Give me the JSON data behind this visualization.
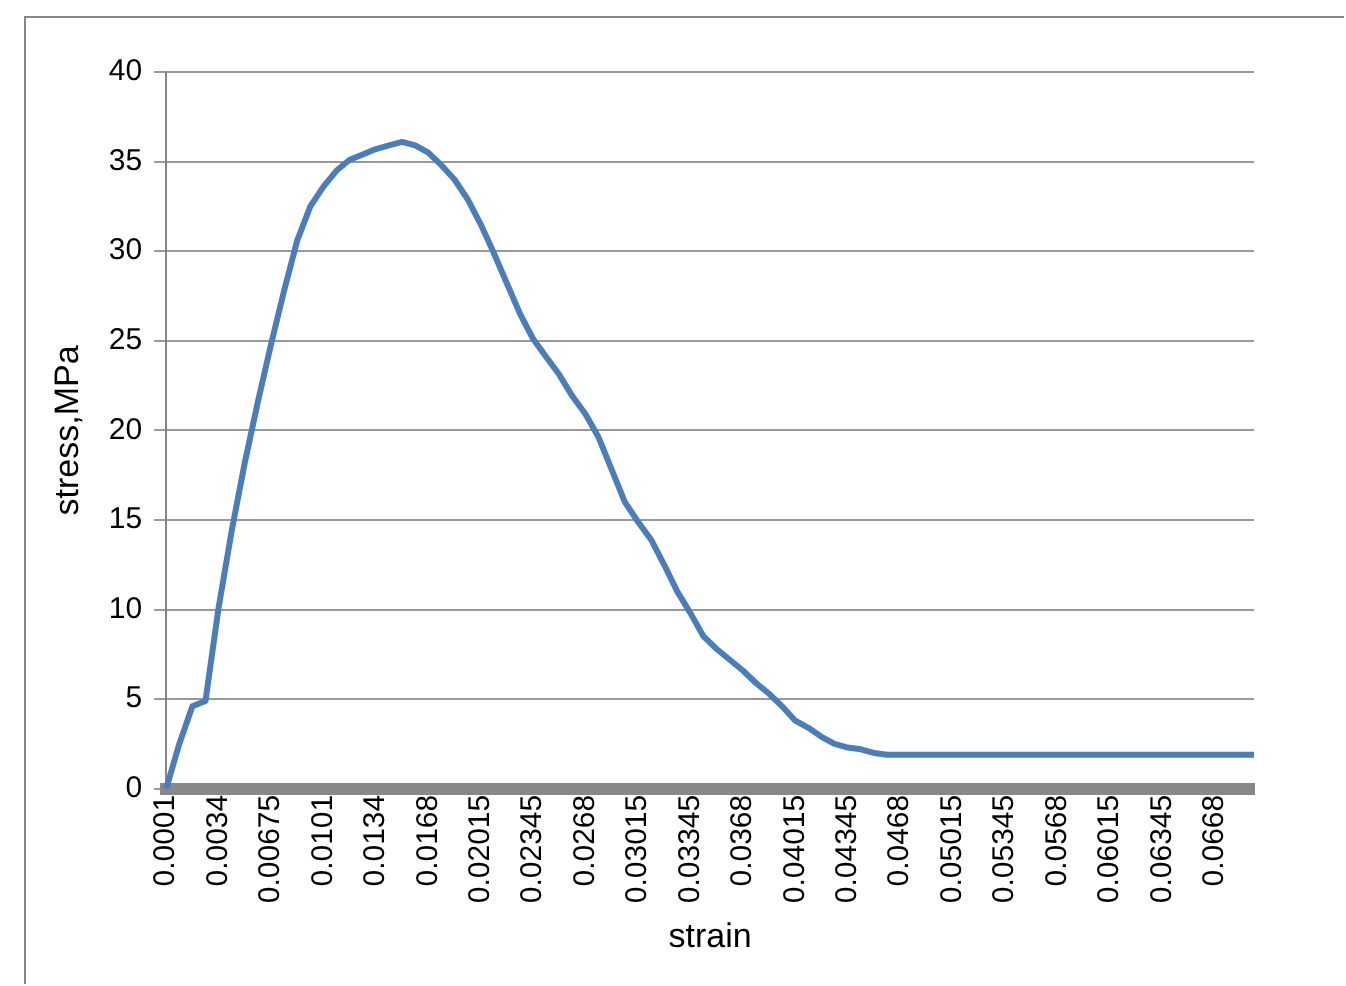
{
  "chart_data": {
    "type": "line",
    "xlabel": "strain",
    "ylabel": "stress,MPa",
    "categories": [
      "0.0001",
      null,
      null,
      null,
      "0.0034",
      null,
      null,
      null,
      "0.00675",
      null,
      null,
      null,
      "0.0101",
      null,
      null,
      null,
      "0.0134",
      null,
      null,
      null,
      "0.0168",
      null,
      null,
      null,
      "0.02015",
      null,
      null,
      null,
      "0.02345",
      null,
      null,
      null,
      "0.0268",
      null,
      null,
      null,
      "0.03015",
      null,
      null,
      null,
      "0.03345",
      null,
      null,
      null,
      "0.0368",
      null,
      null,
      null,
      "0.04015",
      null,
      null,
      null,
      "0.04345",
      null,
      null,
      null,
      "0.0468",
      null,
      null,
      null,
      "0.05015",
      null,
      null,
      null,
      "0.05345",
      null,
      null,
      null,
      "0.0568",
      null,
      null,
      null,
      "0.06015",
      null,
      null,
      null,
      "0.06345",
      null,
      null,
      null,
      "0.0668",
      null,
      null,
      null
    ],
    "series": [
      {
        "color": "#4a7ebb",
        "values": [
          0,
          2.5,
          4.6,
          4.9,
          10.1,
          14.4,
          18.2,
          21.6,
          24.8,
          27.8,
          30.6,
          32.5,
          33.6,
          34.5,
          35.1,
          35.4,
          35.7,
          35.9,
          36.1,
          35.9,
          35.5,
          34.8,
          34.0,
          32.9,
          31.5,
          29.9,
          28.2,
          26.5,
          25.1,
          24.1,
          23.1,
          21.9,
          20.9,
          19.6,
          17.8,
          16.0,
          14.9,
          13.9,
          12.5,
          11.0,
          9.8,
          8.5,
          7.8,
          7.2,
          6.6,
          5.9,
          5.3,
          4.6,
          3.8,
          3.4,
          2.9,
          2.5,
          2.3,
          2.2,
          2.0,
          1.9,
          1.9,
          1.9,
          1.9,
          1.9,
          1.9,
          1.9,
          1.9,
          1.9,
          1.9,
          1.9,
          1.9,
          1.9,
          1.9,
          1.9,
          1.9,
          1.9,
          1.9,
          1.9,
          1.9,
          1.9,
          1.9,
          1.9,
          1.9,
          1.9,
          1.9,
          1.9,
          1.9,
          1.9
        ]
      }
    ],
    "ylim": [
      0,
      40
    ],
    "yticks": [
      0,
      5,
      10,
      15,
      20,
      25,
      30,
      35,
      40
    ],
    "grid": "y",
    "legend": false,
    "marker": "none",
    "line_style": "solid"
  }
}
